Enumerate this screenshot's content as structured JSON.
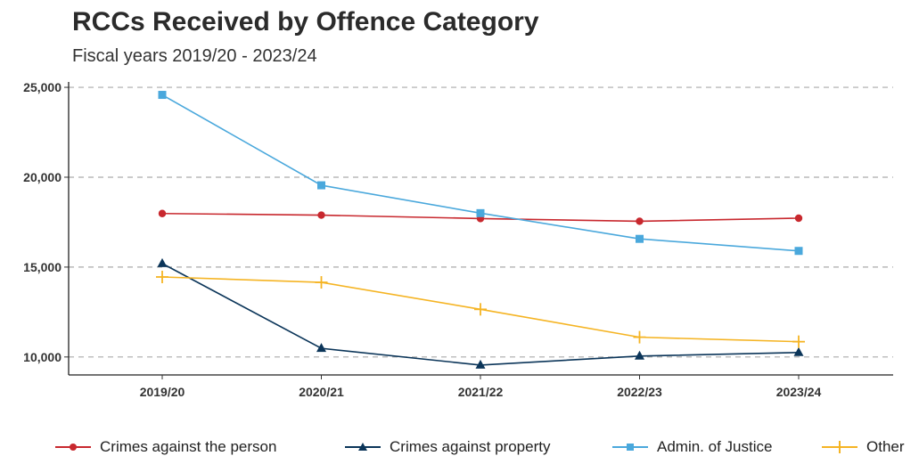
{
  "chart_data": {
    "type": "line",
    "title": "RCCs Received by Offence Category",
    "subtitle": "Fiscal years 2019/20 - 2023/24",
    "categories": [
      "2019/20",
      "2020/21",
      "2021/22",
      "2022/23",
      "2023/24"
    ],
    "ylim": [
      9000,
      25300
    ],
    "yticks": [
      10000,
      15000,
      20000,
      25000
    ],
    "ytick_labels": [
      "10,000",
      "15,000",
      "20,000",
      "25,000"
    ],
    "grid": "horizontal dashed",
    "legend_position": "bottom",
    "series": [
      {
        "name": "Crimes against the person",
        "color": "#c8282e",
        "marker": "circle",
        "values": [
          17980,
          17890,
          17700,
          17550,
          17720
        ]
      },
      {
        "name": "Crimes against property",
        "color": "#0b3559",
        "marker": "triangle",
        "values": [
          15200,
          10480,
          9550,
          10050,
          10250
        ]
      },
      {
        "name": "Admin. of Justice",
        "color": "#4aa8dc",
        "marker": "square",
        "values": [
          24580,
          19550,
          18000,
          16570,
          15900
        ]
      },
      {
        "name": "Other",
        "color": "#f5b423",
        "marker": "plus",
        "values": [
          14450,
          14150,
          12650,
          11100,
          10850
        ]
      }
    ]
  }
}
